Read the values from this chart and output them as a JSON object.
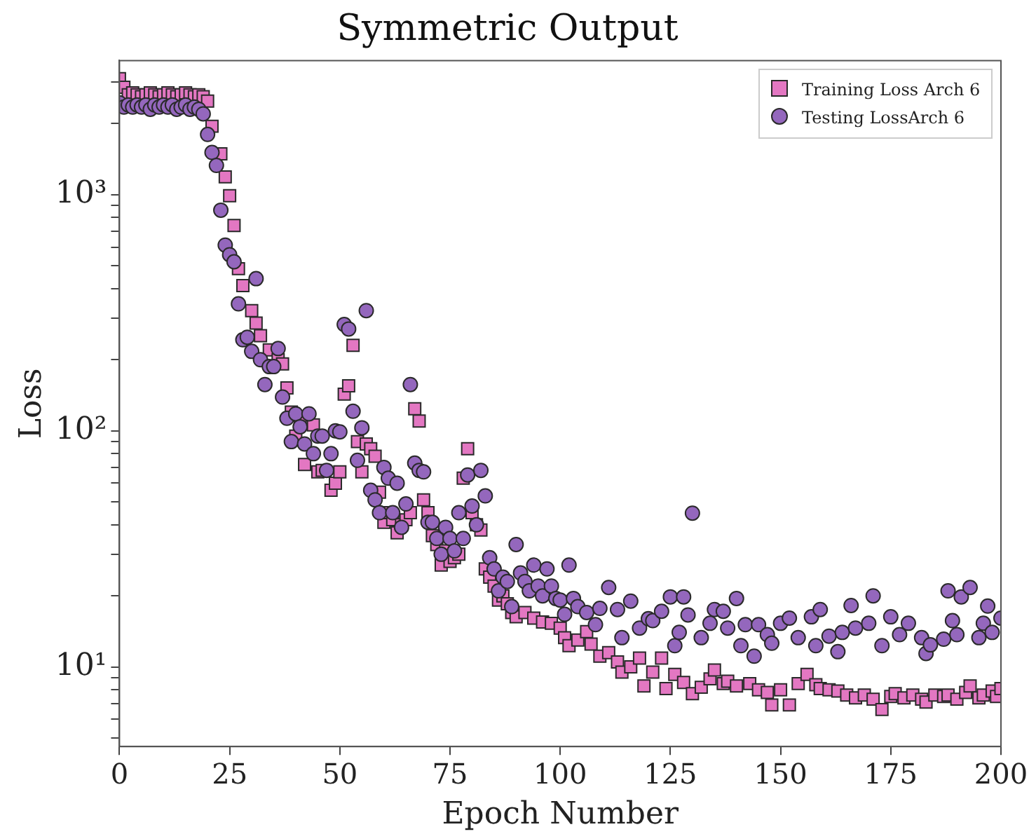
{
  "chart_data": {
    "type": "scatter",
    "title": "Symmetric Output",
    "xlabel": "Epoch Number",
    "ylabel": "Loss",
    "log": "y",
    "grid": false,
    "legend": "top right",
    "xlim": [
      0,
      200
    ],
    "xticks": [
      0,
      25,
      50,
      75,
      100,
      125,
      150,
      175,
      200
    ],
    "ylim": [
      4.6,
      3700
    ],
    "yticks": [
      {
        "value": 5,
        "label": null
      },
      {
        "value": 6,
        "label": null
      },
      {
        "value": 7,
        "label": null
      },
      {
        "value": 8,
        "label": null
      },
      {
        "value": 9,
        "label": null
      },
      {
        "value": 10,
        "label": "10¹"
      },
      {
        "value": 20,
        "label": null
      },
      {
        "value": 30,
        "label": null
      },
      {
        "value": 40,
        "label": null
      },
      {
        "value": 50,
        "label": null
      },
      {
        "value": 60,
        "label": null
      },
      {
        "value": 70,
        "label": null
      },
      {
        "value": 80,
        "label": null
      },
      {
        "value": 90,
        "label": null
      },
      {
        "value": 100,
        "label": "10²"
      },
      {
        "value": 200,
        "label": null
      },
      {
        "value": 300,
        "label": null
      },
      {
        "value": 400,
        "label": null
      },
      {
        "value": 500,
        "label": null
      },
      {
        "value": 600,
        "label": null
      },
      {
        "value": 700,
        "label": null
      },
      {
        "value": 800,
        "label": null
      },
      {
        "value": 900,
        "label": null
      },
      {
        "value": 1000,
        "label": "10³"
      },
      {
        "value": 2000,
        "label": null
      },
      {
        "value": 3000,
        "label": null
      }
    ],
    "series": [
      {
        "name": "Training Loss Arch 6",
        "color": "#e377c2",
        "marker": "square",
        "x": [
          0,
          1,
          2,
          3,
          4,
          5,
          6,
          7,
          8,
          9,
          10,
          11,
          12,
          13,
          14,
          15,
          16,
          17,
          18,
          19,
          20,
          21,
          23,
          24,
          25,
          26,
          27,
          28,
          30,
          31,
          32,
          34,
          36,
          37,
          38,
          39,
          40,
          41,
          42,
          44,
          45,
          46,
          48,
          49,
          50,
          51,
          52,
          53,
          54,
          55,
          56,
          57,
          58,
          59,
          60,
          61,
          62,
          63,
          64,
          65,
          66,
          67,
          68,
          69,
          70,
          71,
          72,
          73,
          74,
          75,
          76,
          77,
          78,
          79,
          80,
          81,
          82,
          83,
          84,
          85,
          86,
          87,
          88,
          89,
          90,
          92,
          94,
          96,
          98,
          100,
          101,
          102,
          104,
          106,
          107,
          109,
          111,
          113,
          114,
          116,
          118,
          119,
          121,
          123,
          124,
          126,
          128,
          130,
          132,
          134,
          135,
          137,
          138,
          140,
          143,
          145,
          147,
          148,
          150,
          152,
          154,
          156,
          158,
          159,
          161,
          163,
          165,
          167,
          169,
          171,
          173,
          175,
          176,
          178,
          180,
          182,
          183,
          185,
          187,
          188,
          190,
          192,
          193,
          195,
          196,
          198,
          199,
          200
        ],
        "values": [
          3100,
          2850,
          2650,
          2700,
          2650,
          2600,
          2650,
          2700,
          2650,
          2600,
          2650,
          2700,
          2650,
          2600,
          2650,
          2700,
          2650,
          2600,
          2650,
          2600,
          2490,
          1950,
          1490,
          1190,
          990,
          741,
          486,
          412,
          323,
          286,
          253,
          220,
          200,
          192,
          152,
          120,
          95,
          110,
          72,
          106,
          67,
          68,
          56,
          60,
          67,
          143,
          155,
          230,
          90,
          67,
          88,
          84,
          78,
          55,
          41,
          45,
          42,
          37,
          40,
          42,
          45,
          124,
          110,
          51,
          45,
          36,
          33,
          27,
          31,
          28,
          29,
          30,
          63,
          84,
          45,
          40,
          38,
          26,
          24,
          22,
          19.2,
          20,
          18.5,
          17,
          16.3,
          17,
          16.1,
          15.5,
          15.3,
          14.6,
          13.3,
          12.3,
          13,
          14.1,
          12.5,
          11.1,
          11.5,
          10.5,
          9.5,
          10,
          10.9,
          8.3,
          9.5,
          10.9,
          8.1,
          9.3,
          8.6,
          7.7,
          8.2,
          8.9,
          9.7,
          8.5,
          8.7,
          8.3,
          8.5,
          8,
          7.8,
          6.9,
          8,
          6.9,
          8.5,
          9.3,
          8.4,
          8.1,
          8,
          7.9,
          7.6,
          7.4,
          7.6,
          7.3,
          6.6,
          7.5,
          7.7,
          7.4,
          7.6,
          7.3,
          7.1,
          7.6,
          7.5,
          7.6,
          7.3,
          7.8,
          8.3,
          7.4,
          7.6,
          7.9,
          7.5,
          8.1
        ]
      },
      {
        "name": "Testing LossArch 6",
        "color": "#9467bd",
        "marker": "circle",
        "x": [
          0,
          1,
          2,
          3,
          4,
          5,
          6,
          7,
          8,
          9,
          10,
          11,
          12,
          13,
          14,
          15,
          16,
          17,
          18,
          19,
          20,
          21,
          22,
          23,
          24,
          25,
          26,
          27,
          28,
          29,
          30,
          31,
          32,
          33,
          34,
          35,
          36,
          37,
          38,
          39,
          40,
          41,
          42,
          43,
          44,
          45,
          46,
          47,
          48,
          49,
          50,
          51,
          52,
          53,
          54,
          55,
          56,
          57,
          58,
          59,
          60,
          61,
          62,
          63,
          64,
          65,
          66,
          67,
          68,
          69,
          70,
          71,
          72,
          73,
          74,
          75,
          76,
          77,
          78,
          79,
          80,
          81,
          82,
          83,
          84,
          85,
          86,
          87,
          88,
          89,
          90,
          91,
          92,
          93,
          94,
          95,
          96,
          97,
          98,
          99,
          100,
          101,
          102,
          103,
          104,
          106,
          108,
          109,
          111,
          113,
          114,
          116,
          118,
          120,
          121,
          123,
          125,
          126,
          127,
          128,
          129,
          130,
          132,
          134,
          135,
          137,
          138,
          140,
          141,
          142,
          144,
          145,
          147,
          148,
          150,
          152,
          154,
          157,
          158,
          159,
          161,
          163,
          164,
          166,
          167,
          170,
          171,
          173,
          175,
          177,
          179,
          182,
          183,
          184,
          187,
          188,
          189,
          190,
          191,
          193,
          195,
          196,
          197,
          198,
          200
        ],
        "values": [
          2450,
          2350,
          2400,
          2350,
          2400,
          2350,
          2400,
          2300,
          2400,
          2350,
          2400,
          2350,
          2400,
          2300,
          2350,
          2400,
          2300,
          2350,
          2300,
          2200,
          1800,
          1510,
          1330,
          860,
          612,
          557,
          520,
          345,
          243,
          249,
          217,
          441,
          200,
          157,
          187,
          187,
          223,
          139,
          113,
          90,
          118,
          104,
          88,
          118,
          80,
          95,
          95,
          68,
          80,
          100,
          99,
          282,
          270,
          121,
          75,
          103,
          323,
          56,
          51,
          45,
          70,
          63,
          45,
          60,
          39,
          49,
          157,
          73,
          68,
          67,
          41,
          41,
          35,
          30,
          39,
          35,
          31,
          45,
          35,
          65,
          48,
          40,
          68,
          53,
          29,
          26,
          21,
          24,
          23,
          18,
          33,
          25,
          23,
          21,
          27,
          22,
          20,
          26,
          22,
          19.5,
          19.2,
          16.7,
          27,
          19.5,
          18,
          17,
          15.1,
          17.7,
          21.7,
          17.5,
          13.3,
          19,
          14.6,
          16,
          15.7,
          17.2,
          19.8,
          12.3,
          14,
          19.8,
          16.6,
          44.8,
          13.3,
          15.3,
          17.5,
          17.2,
          14.6,
          19.5,
          12.3,
          15.1,
          11.1,
          15.1,
          13.7,
          12.6,
          15.3,
          16.1,
          13.3,
          16.3,
          12.3,
          17.5,
          13.5,
          11.6,
          14,
          18.2,
          14.6,
          15.3,
          20,
          12.3,
          16.3,
          13.7,
          15.3,
          13.3,
          11.4,
          12.4,
          13.1,
          21,
          15.7,
          13.7,
          19.8,
          21.7,
          13.3,
          15.3,
          18.1,
          14,
          16.1
        ]
      }
    ]
  }
}
